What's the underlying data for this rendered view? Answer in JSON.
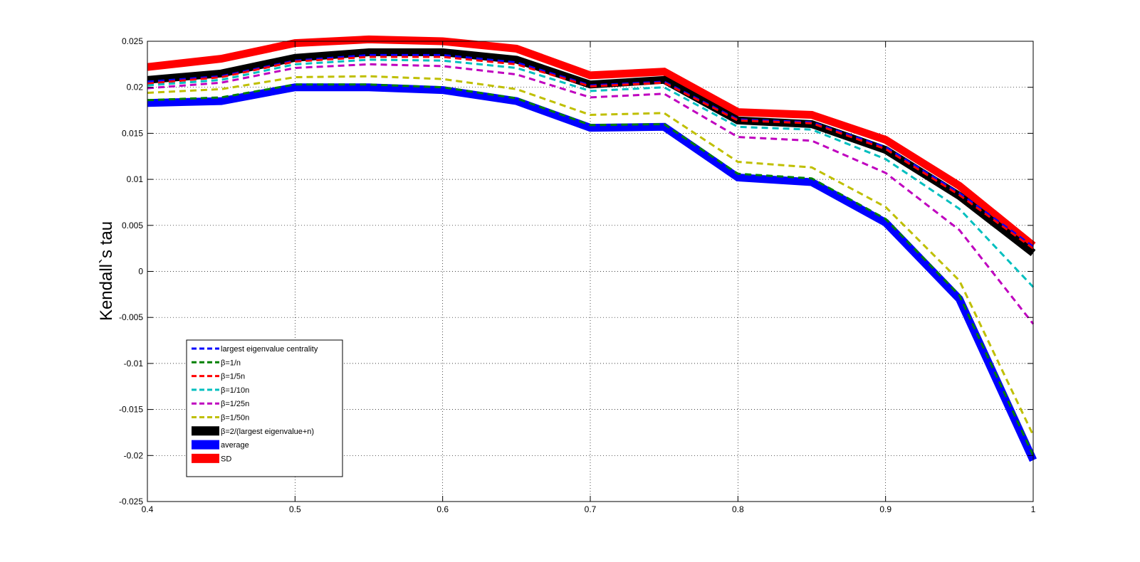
{
  "chart_data": {
    "type": "line",
    "title": "",
    "xlabel": "",
    "ylabel": "Kendall`s tau",
    "xlim": [
      0.4,
      1
    ],
    "ylim": [
      -0.025,
      0.025
    ],
    "grid": true,
    "legend_position": "bottom-left",
    "x": [
      0.4,
      0.45,
      0.5,
      0.55,
      0.6,
      0.65,
      0.7,
      0.75,
      0.8,
      0.85,
      0.9,
      0.95,
      1.0
    ],
    "x_ticks": [
      0.4,
      0.5,
      0.6,
      0.7,
      0.8,
      0.9,
      1
    ],
    "x_tick_labels": [
      "0.4",
      "0.5",
      "0.6",
      "0.7",
      "0.8",
      "0.9",
      "1"
    ],
    "y_ticks": [
      0.025,
      0.02,
      0.015,
      0.01,
      0.005,
      0,
      -0.005,
      -0.01,
      -0.015,
      -0.02,
      -0.025
    ],
    "y_tick_labels": [
      "0.025",
      "0.02",
      "0.015",
      "0.01",
      "0.005",
      "0",
      "-0.005",
      "-0.01",
      "-0.015",
      "-0.02",
      "-0.025"
    ],
    "series": [
      {
        "name": "SD",
        "color": "#ff0000",
        "style": "solid-thick",
        "values": [
          0.0222,
          0.0231,
          0.0248,
          0.0252,
          0.025,
          0.0242,
          0.0213,
          0.0217,
          0.0173,
          0.017,
          0.0143,
          0.0093,
          0.0028
        ]
      },
      {
        "name": "β=2/(largest eigenvalue+n)",
        "color": "#000000",
        "style": "solid-thick",
        "values": [
          0.0208,
          0.0215,
          0.0232,
          0.0238,
          0.0238,
          0.023,
          0.0203,
          0.0208,
          0.0164,
          0.016,
          0.0132,
          0.0082,
          0.002
        ]
      },
      {
        "name": "average",
        "color": "#0000ff",
        "style": "solid-thick",
        "values": [
          0.0183,
          0.0185,
          0.02,
          0.02,
          0.0197,
          0.0185,
          0.0156,
          0.0157,
          0.0102,
          0.0097,
          0.0053,
          -0.003,
          -0.0205
        ]
      },
      {
        "name": "largest eigenvalue centrality",
        "color": "#0000ff",
        "style": "dashed",
        "values": [
          0.0206,
          0.0212,
          0.0229,
          0.0235,
          0.0235,
          0.0227,
          0.0202,
          0.0206,
          0.0165,
          0.0162,
          0.0135,
          0.0085,
          0.0027
        ]
      },
      {
        "name": "β=1/n",
        "color": "#008000",
        "style": "dashed",
        "values": [
          0.0186,
          0.0189,
          0.0203,
          0.0203,
          0.02,
          0.0188,
          0.0159,
          0.016,
          0.0106,
          0.0101,
          0.0057,
          -0.0026,
          -0.02
        ]
      },
      {
        "name": "β=1/5n",
        "color": "#ff0000",
        "style": "dashed",
        "values": [
          0.0204,
          0.0211,
          0.0228,
          0.0233,
          0.0233,
          0.0225,
          0.0201,
          0.0205,
          0.0164,
          0.0161,
          0.0133,
          0.0083,
          0.0025
        ]
      },
      {
        "name": "β=1/10n",
        "color": "#00bfbf",
        "style": "dashed",
        "values": [
          0.0202,
          0.0208,
          0.0225,
          0.023,
          0.0229,
          0.0221,
          0.0196,
          0.02,
          0.0157,
          0.0154,
          0.0122,
          0.0068,
          -0.0017
        ]
      },
      {
        "name": "β=1/25n",
        "color": "#bf00bf",
        "style": "dashed",
        "values": [
          0.0199,
          0.0205,
          0.0221,
          0.0225,
          0.0223,
          0.0214,
          0.0189,
          0.0193,
          0.0146,
          0.0142,
          0.0107,
          0.0045,
          -0.0057
        ]
      },
      {
        "name": "β=1/50n",
        "color": "#bfbf00",
        "style": "dashed",
        "values": [
          0.0194,
          0.0198,
          0.0211,
          0.0212,
          0.0209,
          0.0198,
          0.017,
          0.0172,
          0.0119,
          0.0113,
          0.007,
          -0.001,
          -0.0178
        ]
      }
    ],
    "legend": [
      {
        "label": "largest eigenvalue centrality",
        "color": "#0000ff",
        "style": "dashed"
      },
      {
        "label": "β=1/n",
        "color": "#008000",
        "style": "dashed"
      },
      {
        "label": "β=1/5n",
        "color": "#ff0000",
        "style": "dashed"
      },
      {
        "label": "β=1/10n",
        "color": "#00bfbf",
        "style": "dashed"
      },
      {
        "label": "β=1/25n",
        "color": "#bf00bf",
        "style": "dashed"
      },
      {
        "label": "β=1/50n",
        "color": "#bfbf00",
        "style": "dashed"
      },
      {
        "label": "β=2/(largest eigenvalue+n)",
        "color": "#000000",
        "style": "solid-thick"
      },
      {
        "label": "average",
        "color": "#0000ff",
        "style": "solid-thick"
      },
      {
        "label": "SD",
        "color": "#ff0000",
        "style": "solid-thick"
      }
    ]
  }
}
